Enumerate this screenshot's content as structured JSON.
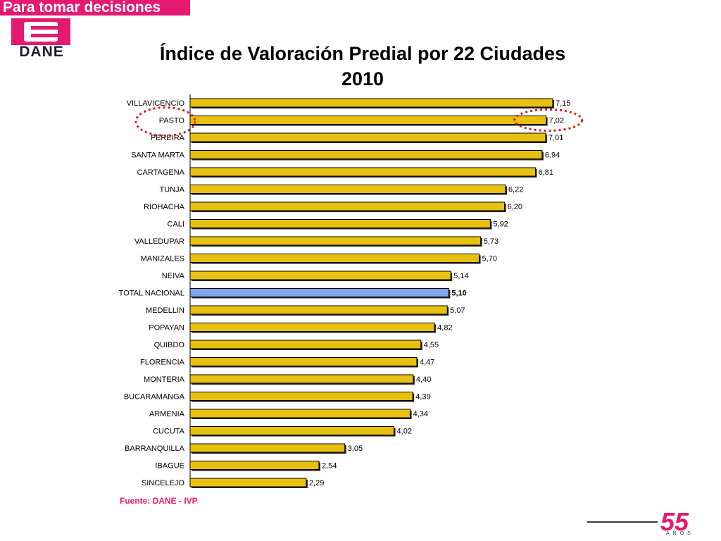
{
  "header": {
    "banner_text": "Para tomar decisiones",
    "logo_text": "DANE"
  },
  "colors": {
    "brand": "#e5196f",
    "bar_fill": "#e8c010",
    "bar_highlight": "#7ea6f0",
    "marker": "#d42020"
  },
  "chart_data": {
    "type": "bar",
    "orientation": "horizontal",
    "title": "Índice de Valoración Predial por 22 Ciudades",
    "subtitle": "2010",
    "categories": [
      "VILLAVICENCIO",
      "PASTO",
      "PEREIRA",
      "SANTA MARTA",
      "CARTAGENA",
      "TUNJA",
      "RIOHACHA",
      "CALI",
      "VALLEDUPAR",
      "MANIZALES",
      "NEIVA",
      "TOTAL NACIONAL",
      "MEDELLIN",
      "POPAYAN",
      "QUIBDO",
      "FLORENCIA",
      "MONTERIA",
      "BUCARAMANGA",
      "ARMENIA",
      "CUCUTA",
      "BARRANQUILLA",
      "IBAGUE",
      "SINCELEJO"
    ],
    "values": [
      7.15,
      7.02,
      7.01,
      6.94,
      6.81,
      6.22,
      6.2,
      5.92,
      5.73,
      5.7,
      5.14,
      5.1,
      5.07,
      4.82,
      4.55,
      4.47,
      4.4,
      4.39,
      4.34,
      4.02,
      3.05,
      2.54,
      2.29
    ],
    "value_labels": [
      "7,15",
      "7,02",
      "7,01",
      "6,94",
      "6,81",
      "6,22",
      "6,20",
      "5,92",
      "5,73",
      "5,70",
      "5,14",
      "5,10",
      "5,07",
      "4,82",
      "4,55",
      "4,47",
      "4,40",
      "4,39",
      "4,34",
      "4,02",
      "3,05",
      "2,54",
      "2,29"
    ],
    "highlight_category": "TOTAL NACIONAL",
    "circled_category": "PASTO",
    "xlim": [
      0,
      7.15
    ],
    "grid": false,
    "legend": "none"
  },
  "source": "Fuente: DANE - IVP",
  "anniversary": {
    "number": "55",
    "word": "AÑOS"
  }
}
